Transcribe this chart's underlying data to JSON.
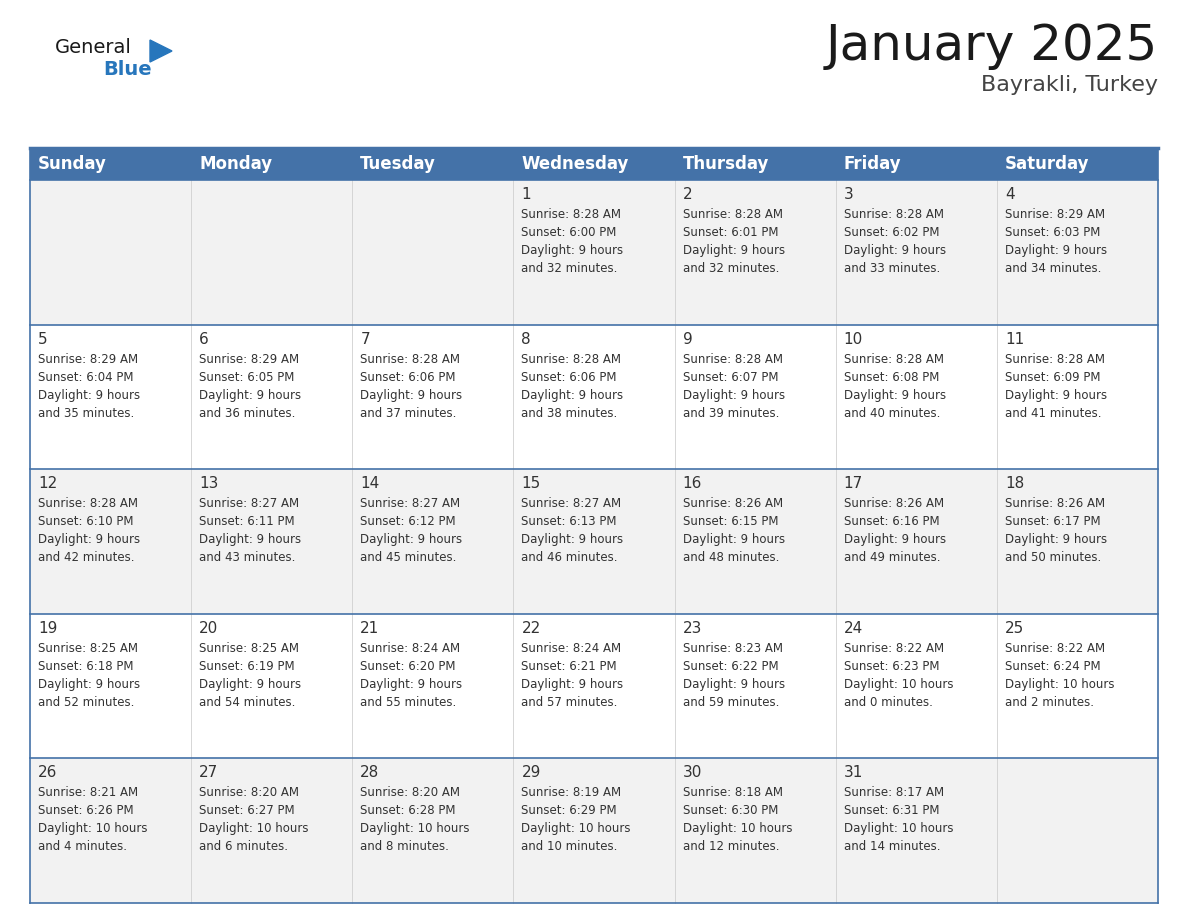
{
  "title": "January 2025",
  "subtitle": "Bayrakli, Turkey",
  "header_color": "#4472a8",
  "header_text_color": "#ffffff",
  "cell_bg_odd": "#f2f2f2",
  "cell_bg_even": "#ffffff",
  "border_color": "#4472a8",
  "cell_line_color": "#c0c0c0",
  "text_color": "#333333",
  "days_of_week": [
    "Sunday",
    "Monday",
    "Tuesday",
    "Wednesday",
    "Thursday",
    "Friday",
    "Saturday"
  ],
  "calendar_data": [
    [
      {
        "day": "",
        "info": ""
      },
      {
        "day": "",
        "info": ""
      },
      {
        "day": "",
        "info": ""
      },
      {
        "day": "1",
        "info": "Sunrise: 8:28 AM\nSunset: 6:00 PM\nDaylight: 9 hours\nand 32 minutes."
      },
      {
        "day": "2",
        "info": "Sunrise: 8:28 AM\nSunset: 6:01 PM\nDaylight: 9 hours\nand 32 minutes."
      },
      {
        "day": "3",
        "info": "Sunrise: 8:28 AM\nSunset: 6:02 PM\nDaylight: 9 hours\nand 33 minutes."
      },
      {
        "day": "4",
        "info": "Sunrise: 8:29 AM\nSunset: 6:03 PM\nDaylight: 9 hours\nand 34 minutes."
      }
    ],
    [
      {
        "day": "5",
        "info": "Sunrise: 8:29 AM\nSunset: 6:04 PM\nDaylight: 9 hours\nand 35 minutes."
      },
      {
        "day": "6",
        "info": "Sunrise: 8:29 AM\nSunset: 6:05 PM\nDaylight: 9 hours\nand 36 minutes."
      },
      {
        "day": "7",
        "info": "Sunrise: 8:28 AM\nSunset: 6:06 PM\nDaylight: 9 hours\nand 37 minutes."
      },
      {
        "day": "8",
        "info": "Sunrise: 8:28 AM\nSunset: 6:06 PM\nDaylight: 9 hours\nand 38 minutes."
      },
      {
        "day": "9",
        "info": "Sunrise: 8:28 AM\nSunset: 6:07 PM\nDaylight: 9 hours\nand 39 minutes."
      },
      {
        "day": "10",
        "info": "Sunrise: 8:28 AM\nSunset: 6:08 PM\nDaylight: 9 hours\nand 40 minutes."
      },
      {
        "day": "11",
        "info": "Sunrise: 8:28 AM\nSunset: 6:09 PM\nDaylight: 9 hours\nand 41 minutes."
      }
    ],
    [
      {
        "day": "12",
        "info": "Sunrise: 8:28 AM\nSunset: 6:10 PM\nDaylight: 9 hours\nand 42 minutes."
      },
      {
        "day": "13",
        "info": "Sunrise: 8:27 AM\nSunset: 6:11 PM\nDaylight: 9 hours\nand 43 minutes."
      },
      {
        "day": "14",
        "info": "Sunrise: 8:27 AM\nSunset: 6:12 PM\nDaylight: 9 hours\nand 45 minutes."
      },
      {
        "day": "15",
        "info": "Sunrise: 8:27 AM\nSunset: 6:13 PM\nDaylight: 9 hours\nand 46 minutes."
      },
      {
        "day": "16",
        "info": "Sunrise: 8:26 AM\nSunset: 6:15 PM\nDaylight: 9 hours\nand 48 minutes."
      },
      {
        "day": "17",
        "info": "Sunrise: 8:26 AM\nSunset: 6:16 PM\nDaylight: 9 hours\nand 49 minutes."
      },
      {
        "day": "18",
        "info": "Sunrise: 8:26 AM\nSunset: 6:17 PM\nDaylight: 9 hours\nand 50 minutes."
      }
    ],
    [
      {
        "day": "19",
        "info": "Sunrise: 8:25 AM\nSunset: 6:18 PM\nDaylight: 9 hours\nand 52 minutes."
      },
      {
        "day": "20",
        "info": "Sunrise: 8:25 AM\nSunset: 6:19 PM\nDaylight: 9 hours\nand 54 minutes."
      },
      {
        "day": "21",
        "info": "Sunrise: 8:24 AM\nSunset: 6:20 PM\nDaylight: 9 hours\nand 55 minutes."
      },
      {
        "day": "22",
        "info": "Sunrise: 8:24 AM\nSunset: 6:21 PM\nDaylight: 9 hours\nand 57 minutes."
      },
      {
        "day": "23",
        "info": "Sunrise: 8:23 AM\nSunset: 6:22 PM\nDaylight: 9 hours\nand 59 minutes."
      },
      {
        "day": "24",
        "info": "Sunrise: 8:22 AM\nSunset: 6:23 PM\nDaylight: 10 hours\nand 0 minutes."
      },
      {
        "day": "25",
        "info": "Sunrise: 8:22 AM\nSunset: 6:24 PM\nDaylight: 10 hours\nand 2 minutes."
      }
    ],
    [
      {
        "day": "26",
        "info": "Sunrise: 8:21 AM\nSunset: 6:26 PM\nDaylight: 10 hours\nand 4 minutes."
      },
      {
        "day": "27",
        "info": "Sunrise: 8:20 AM\nSunset: 6:27 PM\nDaylight: 10 hours\nand 6 minutes."
      },
      {
        "day": "28",
        "info": "Sunrise: 8:20 AM\nSunset: 6:28 PM\nDaylight: 10 hours\nand 8 minutes."
      },
      {
        "day": "29",
        "info": "Sunrise: 8:19 AM\nSunset: 6:29 PM\nDaylight: 10 hours\nand 10 minutes."
      },
      {
        "day": "30",
        "info": "Sunrise: 8:18 AM\nSunset: 6:30 PM\nDaylight: 10 hours\nand 12 minutes."
      },
      {
        "day": "31",
        "info": "Sunrise: 8:17 AM\nSunset: 6:31 PM\nDaylight: 10 hours\nand 14 minutes."
      },
      {
        "day": "",
        "info": ""
      }
    ]
  ],
  "logo_text1": "General",
  "logo_text2": "Blue",
  "logo_color1": "#1a1a1a",
  "logo_color2": "#2776bc",
  "logo_triangle_color": "#2776bc",
  "title_fontsize": 36,
  "subtitle_fontsize": 16,
  "header_fontsize": 12,
  "day_num_fontsize": 11,
  "info_fontsize": 8.5
}
